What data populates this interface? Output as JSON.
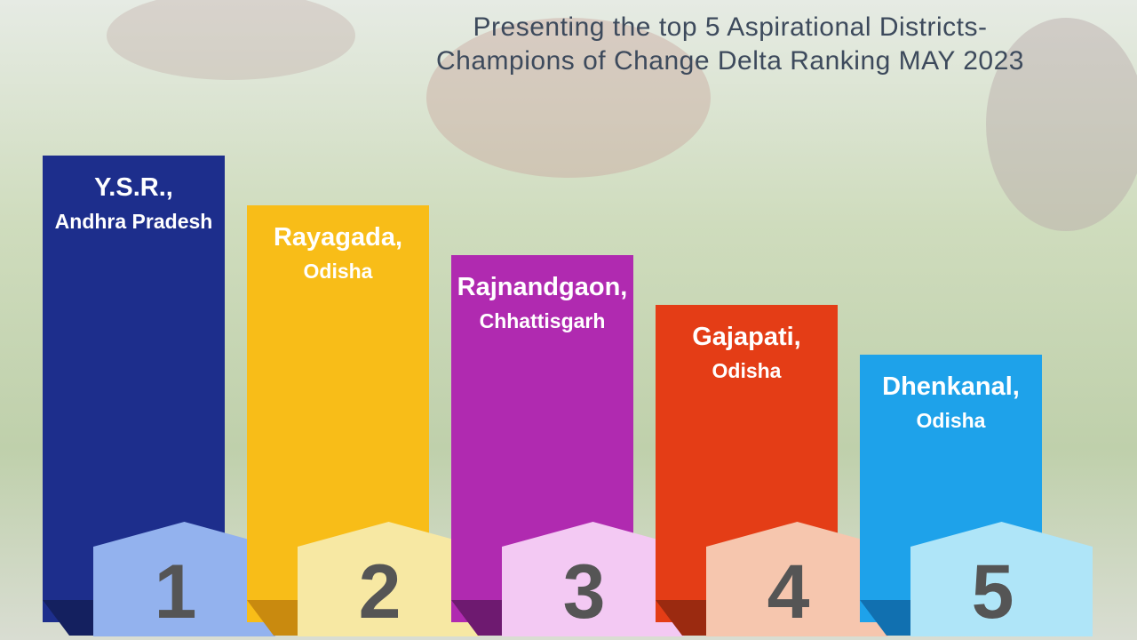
{
  "title": [
    "Presenting the top 5 Aspirational Districts-",
    "Champions of Change Delta Ranking MAY 2023"
  ],
  "districts": [
    {
      "rank": 1,
      "name": "Y.S.R.,",
      "state": "Andhra Pradesh"
    },
    {
      "rank": 2,
      "name": "Rayagada,",
      "state": "Odisha"
    },
    {
      "rank": 3,
      "name": "Rajnandgaon,",
      "state": "Chhattisgarh"
    },
    {
      "rank": 4,
      "name": "Gajapati,",
      "state": "Odisha"
    },
    {
      "rank": 5,
      "name": "Dhenkanal,",
      "state": "Odisha"
    }
  ]
}
